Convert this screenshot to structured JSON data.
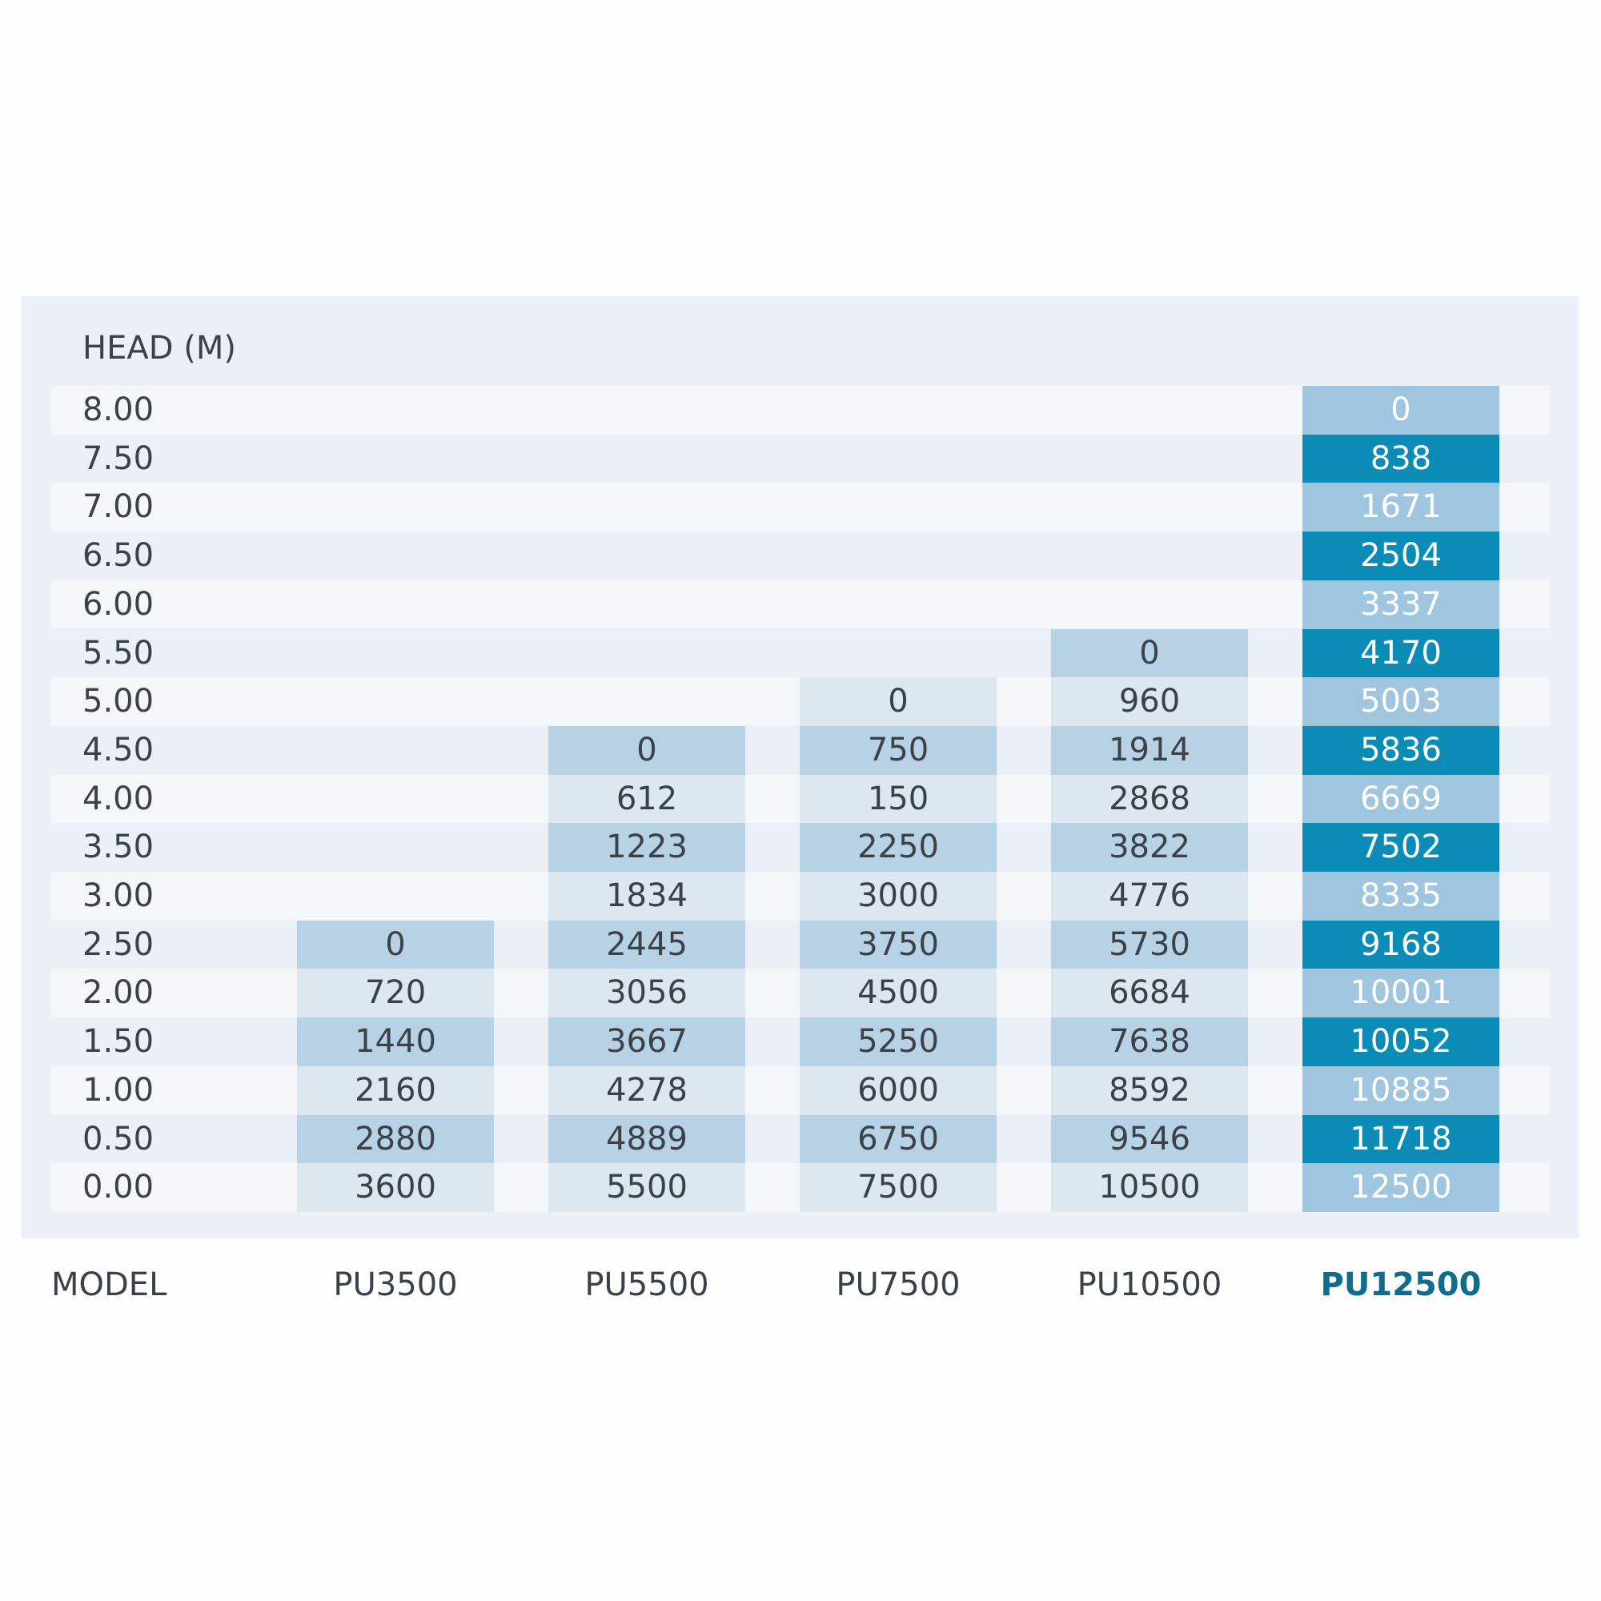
{
  "header": {
    "head_label": "HEAD  (M)",
    "model_label": "MODEL"
  },
  "heads": [
    "8.00",
    "7.50",
    "7.00",
    "6.50",
    "6.00",
    "5.50",
    "5.00",
    "4.50",
    "4.00",
    "3.50",
    "3.00",
    "2.50",
    "2.00",
    "1.50",
    "1.00",
    "0.50",
    "0.00"
  ],
  "models": [
    {
      "name": "PU3500",
      "values": [
        0,
        720,
        1440,
        2160,
        2880,
        3600
      ]
    },
    {
      "name": "PU5500",
      "values": [
        0,
        612,
        1223,
        1834,
        2445,
        3056,
        3667,
        4278,
        4889,
        5500
      ]
    },
    {
      "name": "PU7500",
      "values": [
        0,
        750,
        150,
        2250,
        3000,
        3750,
        4500,
        5250,
        6000,
        6750,
        7500
      ]
    },
    {
      "name": "PU10500",
      "values": [
        0,
        960,
        1914,
        2868,
        3822,
        4776,
        5730,
        6684,
        7638,
        8592,
        9546,
        10500
      ]
    },
    {
      "name": "PU12500",
      "values": [
        0,
        838,
        1671,
        2504,
        3337,
        4170,
        5003,
        5836,
        6669,
        7502,
        8335,
        9168,
        10001,
        10052,
        10885,
        11718,
        12500
      ]
    }
  ]
}
